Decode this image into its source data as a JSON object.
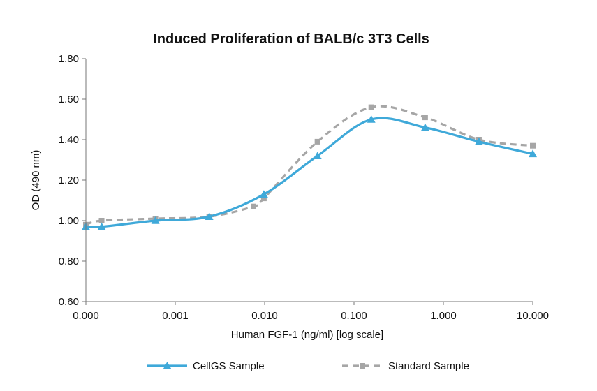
{
  "chart_data": {
    "type": "line",
    "title": "Induced Proliferation of BALB/c 3T3 Cells",
    "xlabel": "Human FGF-1 (ng/ml) [log scale]",
    "ylabel": "OD (490 nm)",
    "x_scale": "log",
    "x_tick_labels": [
      "0.000",
      "0.001",
      "0.010",
      "0.100",
      "1.000",
      "10.000"
    ],
    "y_tick_labels": [
      "0.60",
      "0.80",
      "1.00",
      "1.20",
      "1.40",
      "1.60",
      "1.80"
    ],
    "ylim": [
      0.6,
      1.8
    ],
    "grid": false,
    "legend_position": "bottom",
    "series": [
      {
        "name": "CellGS Sample",
        "color": "#3fa9d9",
        "line_style": "solid",
        "marker": "triangle",
        "x": [
          0.0001,
          0.00015,
          0.0006,
          0.0024,
          0.0098,
          0.039,
          0.156,
          0.625,
          2.5,
          10
        ],
        "y": [
          0.97,
          0.97,
          1.0,
          1.02,
          1.13,
          1.32,
          1.5,
          1.46,
          1.39,
          1.33
        ]
      },
      {
        "name": "Standard Sample",
        "color": "#a6a6a6",
        "line_style": "dashed",
        "marker": "square",
        "x": [
          0.0001,
          0.00015,
          0.0006,
          0.0024,
          0.0075,
          0.0098,
          0.039,
          0.156,
          0.625,
          2.5,
          10
        ],
        "y": [
          0.98,
          1.0,
          1.01,
          1.02,
          1.07,
          1.11,
          1.39,
          1.56,
          1.51,
          1.4,
          1.37
        ]
      }
    ]
  }
}
